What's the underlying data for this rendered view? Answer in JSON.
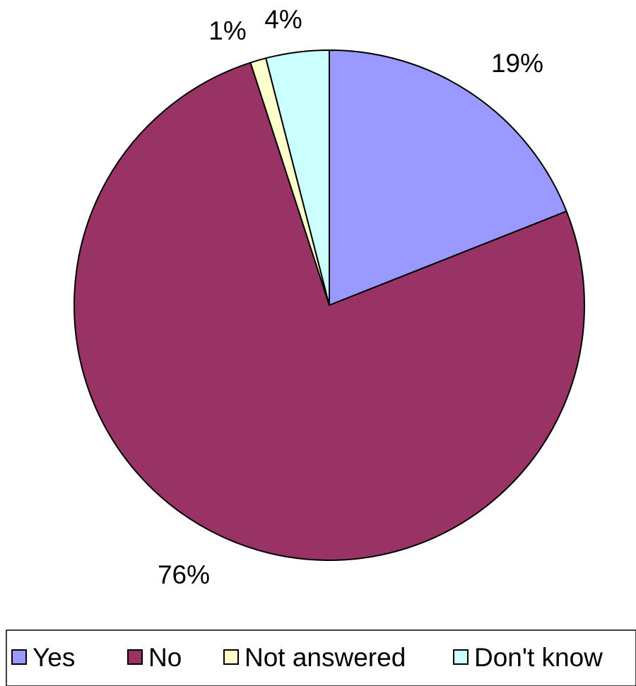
{
  "chart_data": {
    "type": "pie",
    "categories": [
      "Yes",
      "No",
      "Not answered",
      "Don't know"
    ],
    "values": [
      19,
      76,
      1,
      4
    ],
    "labels": [
      "19%",
      "76%",
      "1%",
      "4%"
    ],
    "colors": [
      "#9999FF",
      "#993366",
      "#FFFFCC",
      "#CCFFFF"
    ],
    "start_angle": "12 o'clock",
    "direction": "clockwise",
    "legend_position": "bottom",
    "title": "",
    "xlabel": "",
    "ylabel": ""
  }
}
